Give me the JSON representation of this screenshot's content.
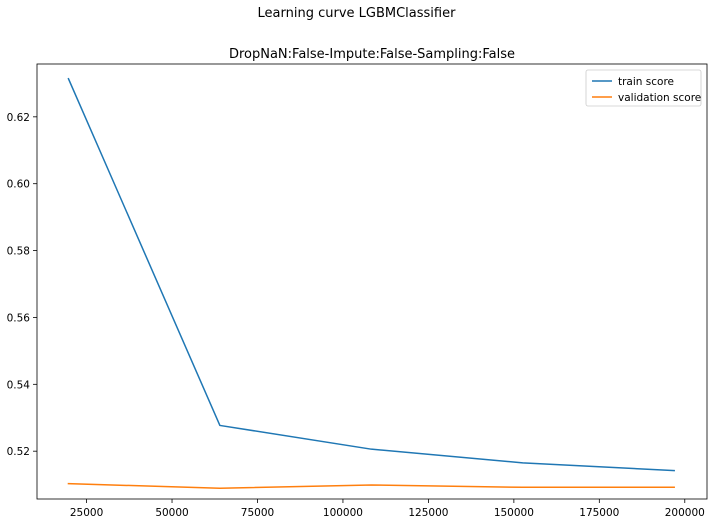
{
  "figure": {
    "suptitle": "Learning curve LGBMClassifier"
  },
  "chart_data": {
    "type": "line",
    "title": "DropNaN:False-Impute:False-Sampling:False",
    "xlabel": "",
    "ylabel": "",
    "xlim": [
      10500,
      206500
    ],
    "ylim": [
      0.5057,
      0.6358
    ],
    "xticks": [
      25000,
      50000,
      75000,
      100000,
      125000,
      150000,
      175000,
      200000
    ],
    "yticks": [
      0.52,
      0.54,
      0.56,
      0.58,
      0.6,
      0.62
    ],
    "xtick_labels": [
      "25000",
      "50000",
      "75000",
      "100000",
      "125000",
      "150000",
      "175000",
      "200000"
    ],
    "ytick_labels": [
      "0.52",
      "0.54",
      "0.56",
      "0.58",
      "0.60",
      "0.62"
    ],
    "grid": false,
    "legend_position": "top-right",
    "x": [
      19700,
      64000,
      108300,
      152600,
      196900
    ],
    "series": [
      {
        "name": "train score",
        "color": "#1f77b4",
        "values": [
          0.6314,
          0.5277,
          0.5206,
          0.5165,
          0.5142
        ]
      },
      {
        "name": "validation score",
        "color": "#ff7f0e",
        "values": [
          0.5103,
          0.5089,
          0.5099,
          0.5092,
          0.5092
        ]
      }
    ]
  }
}
